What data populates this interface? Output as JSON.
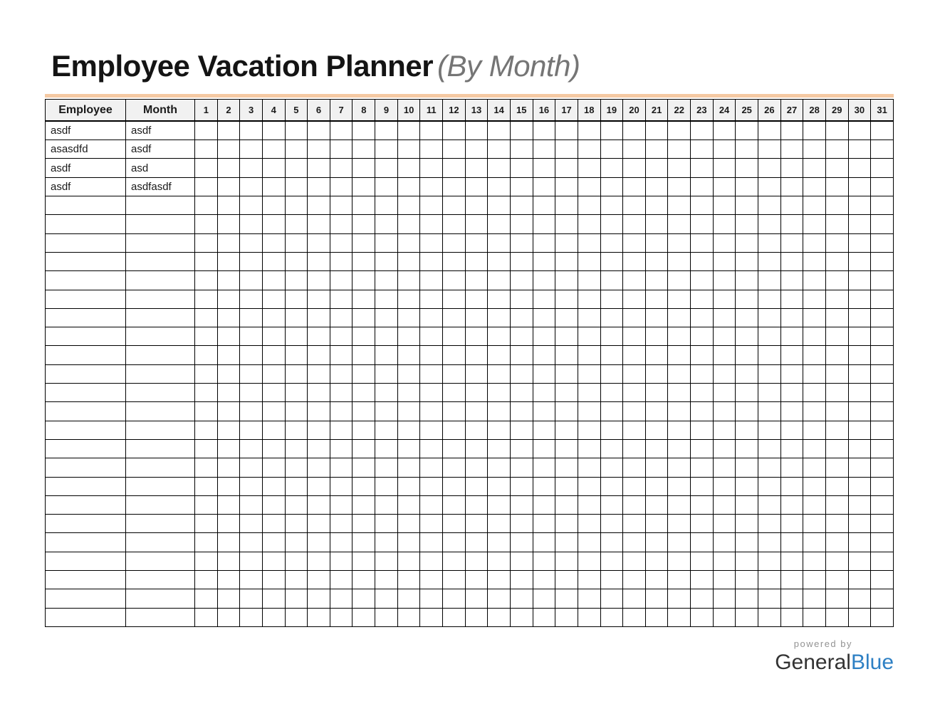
{
  "title": {
    "main": "Employee Vacation Planner",
    "suffix": "(By Month)"
  },
  "table": {
    "employee_header": "Employee",
    "month_header": "Month",
    "day_headers": [
      "1",
      "2",
      "3",
      "4",
      "5",
      "6",
      "7",
      "8",
      "9",
      "10",
      "11",
      "12",
      "13",
      "14",
      "15",
      "16",
      "17",
      "18",
      "19",
      "20",
      "21",
      "22",
      "23",
      "24",
      "25",
      "26",
      "27",
      "28",
      "29",
      "30",
      "31"
    ],
    "rows": [
      {
        "employee": "asdf",
        "month": "asdf"
      },
      {
        "employee": "asasdfd",
        "month": "asdf"
      },
      {
        "employee": "asdf",
        "month": "asd"
      },
      {
        "employee": "asdf",
        "month": "asdfasdf"
      },
      {
        "employee": "",
        "month": ""
      },
      {
        "employee": "",
        "month": ""
      },
      {
        "employee": "",
        "month": ""
      },
      {
        "employee": "",
        "month": ""
      },
      {
        "employee": "",
        "month": ""
      },
      {
        "employee": "",
        "month": ""
      },
      {
        "employee": "",
        "month": ""
      },
      {
        "employee": "",
        "month": ""
      },
      {
        "employee": "",
        "month": ""
      },
      {
        "employee": "",
        "month": ""
      },
      {
        "employee": "",
        "month": ""
      },
      {
        "employee": "",
        "month": ""
      },
      {
        "employee": "",
        "month": ""
      },
      {
        "employee": "",
        "month": ""
      },
      {
        "employee": "",
        "month": ""
      },
      {
        "employee": "",
        "month": ""
      },
      {
        "employee": "",
        "month": ""
      },
      {
        "employee": "",
        "month": ""
      },
      {
        "employee": "",
        "month": ""
      },
      {
        "employee": "",
        "month": ""
      },
      {
        "employee": "",
        "month": ""
      },
      {
        "employee": "",
        "month": ""
      },
      {
        "employee": "",
        "month": ""
      }
    ]
  },
  "footer": {
    "powered_by": "powered by",
    "brand_dark": "General",
    "brand_blue": "Blue"
  },
  "colors": {
    "accent_rule": "#f5c9a3",
    "header_bg": "#f1f1f1",
    "border": "#000000",
    "brand_blue": "#2e80c4"
  }
}
